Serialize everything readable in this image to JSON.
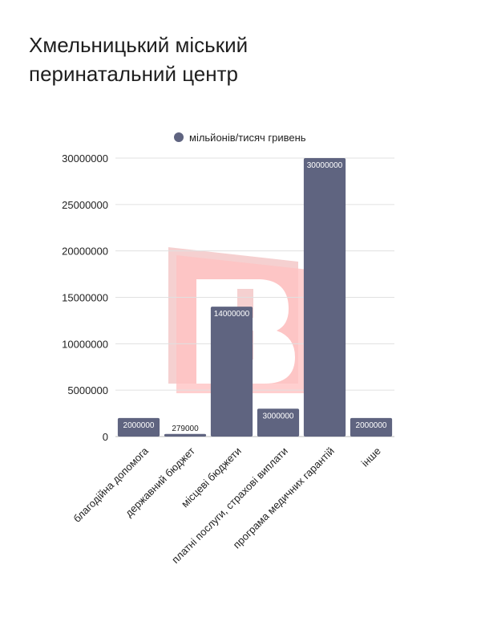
{
  "title_lines": [
    "Хмельницький міський",
    "перинатальний центр"
  ],
  "chart_data": {
    "type": "bar",
    "categories": [
      "благодійна допомога",
      "державний бюджет",
      "місцеві бюджети",
      "платні послуги, страхові виплати",
      "програма медичних гарантій",
      "інше"
    ],
    "series": [
      {
        "name": "мільйонів/тисяч гривень",
        "values": [
          2000000,
          279000,
          14000000,
          3000000,
          30000000,
          2000000
        ]
      }
    ],
    "data_labels": [
      "2000000",
      "279000",
      "14000000",
      "3000000",
      "30000000",
      "2000000"
    ],
    "yticks": [
      "0",
      "5000000",
      "10000000",
      "15000000",
      "20000000",
      "25000000",
      "30000000"
    ],
    "ylim": [
      0,
      30000000
    ],
    "legend": "top",
    "grid": true,
    "bar_color": "#5f6480"
  }
}
